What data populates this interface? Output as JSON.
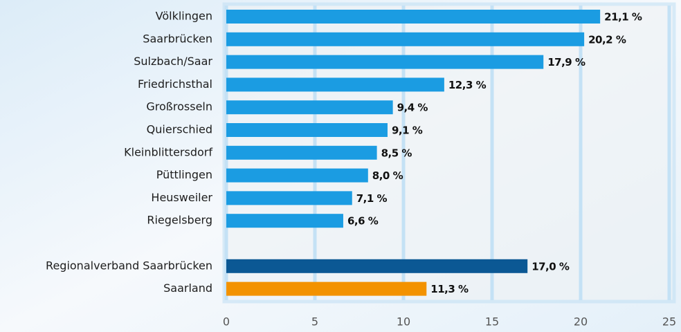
{
  "chart_data": {
    "type": "bar",
    "orientation": "horizontal",
    "categories": [
      "Völklingen",
      "Saarbrücken",
      "Sulzbach/Saar",
      "Friedrichsthal",
      "Großrosseln",
      "Quierschied",
      "Kleinblittersdorf",
      "Püttlingen",
      "Heusweiler",
      "Riegelsberg",
      null,
      "Regionalverband Saarbrücken",
      "Saarland"
    ],
    "values": [
      21.1,
      20.2,
      17.9,
      12.3,
      9.4,
      9.1,
      8.5,
      8.0,
      7.1,
      6.6,
      null,
      17.0,
      11.3
    ],
    "value_labels": [
      "21,1 %",
      "20,2 %",
      "17,9 %",
      "12,3 %",
      "9,4 %",
      "9,1 %",
      "8,5 %",
      "8,0 %",
      "7,1 %",
      "6,6 %",
      null,
      "17,0 %",
      "11,3 %"
    ],
    "colors": [
      "#1b9ce2",
      "#1b9ce2",
      "#1b9ce2",
      "#1b9ce2",
      "#1b9ce2",
      "#1b9ce2",
      "#1b9ce2",
      "#1b9ce2",
      "#1b9ce2",
      "#1b9ce2",
      null,
      "#0b5894",
      "#f39200"
    ],
    "xlim": [
      0,
      25
    ],
    "xticks": [
      0,
      5,
      10,
      15,
      20,
      25
    ],
    "grid": true
  }
}
